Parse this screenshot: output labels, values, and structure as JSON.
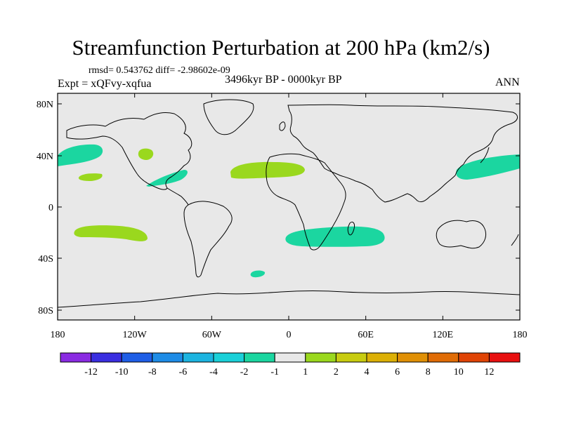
{
  "title": "Streamfunction Perturbation at 200 hPa (km2/s)",
  "stats": "rmsd= 0.543762 diff= -2.98602e-09",
  "experiment": "Expt = xQFvy-xqfua",
  "period": "3496kyr BP - 0000kyr BP",
  "season": "ANN",
  "map": {
    "background_color": "#e8e8e8",
    "lat_ticks": [
      "80N",
      "40N",
      "0",
      "40S",
      "80S"
    ],
    "lon_ticks": [
      "180",
      "120W",
      "60W",
      "0",
      "60E",
      "120E",
      "180"
    ]
  },
  "anomaly_regions": [
    {
      "name": "north-pacific-west",
      "level": "-1 to -2",
      "color": "#1bd6a0"
    },
    {
      "name": "great-lakes",
      "level": "1 to 2",
      "color": "#9ad81e"
    },
    {
      "name": "hawaii",
      "level": "1 to 2",
      "color": "#9ad81e"
    },
    {
      "name": "gulf-of-mexico",
      "level": "-1 to -2",
      "color": "#1bd6a0"
    },
    {
      "name": "north-africa-atlantic",
      "level": "1 to 2",
      "color": "#9ad81e"
    },
    {
      "name": "north-pacific-east",
      "level": "-1 to -2",
      "color": "#1bd6a0"
    },
    {
      "name": "south-pacific",
      "level": "1 to 2",
      "color": "#9ad81e"
    },
    {
      "name": "southern-africa",
      "level": "-1 to -2",
      "color": "#1bd6a0"
    },
    {
      "name": "south-atlantic",
      "level": "-1 to -2",
      "color": "#1bd6a0"
    }
  ],
  "colorbar": {
    "colors": [
      "#8a2be2",
      "#3a2ee0",
      "#1f5ee6",
      "#1e8ce6",
      "#1cb4e0",
      "#1ad0d8",
      "#1bd6a0",
      "#e8e8e8",
      "#9ad81e",
      "#c8cc10",
      "#dcb006",
      "#e09006",
      "#e06c06",
      "#e04406",
      "#e81010"
    ],
    "labels": [
      "-12",
      "-10",
      "-8",
      "-6",
      "-4",
      "-2",
      "-1",
      "1",
      "2",
      "4",
      "6",
      "8",
      "10",
      "12"
    ]
  }
}
